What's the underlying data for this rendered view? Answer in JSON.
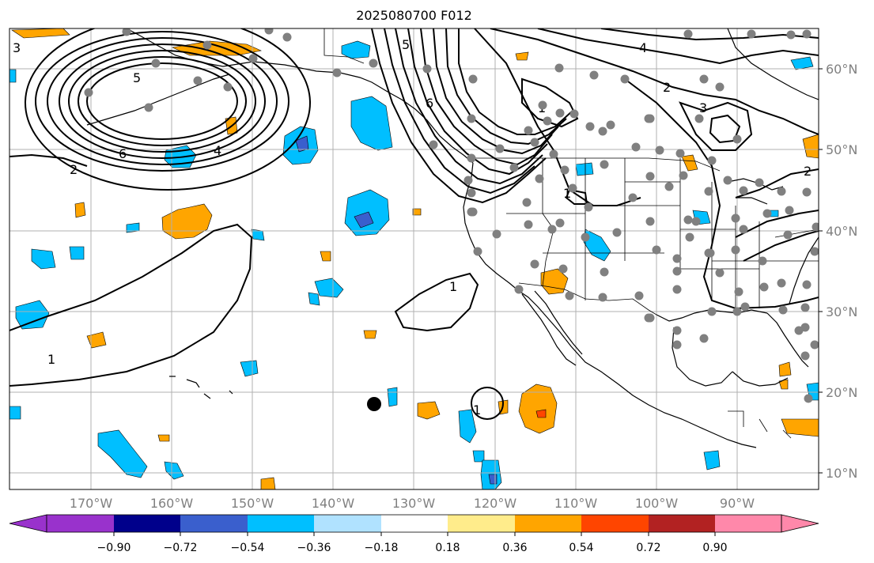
{
  "title": "2025080700 F012",
  "map": {
    "longitude_ticks": [
      "170°W",
      "160°W",
      "150°W",
      "140°W",
      "130°W",
      "120°W",
      "110°W",
      "100°W",
      "90°W"
    ],
    "latitude_ticks": [
      "60°N",
      "50°N",
      "40°N",
      "30°N",
      "20°N",
      "10°N"
    ],
    "contour_labels": [
      "3",
      "5",
      "6",
      "4",
      "1",
      "2",
      "5",
      "6",
      "4",
      "1",
      "2",
      "3",
      "1",
      "1",
      "1",
      "2"
    ],
    "grid": true,
    "coastlines": true,
    "state_borders": true,
    "station_marker_color": "#808080",
    "highlight_marker_color": "#000000",
    "contour_color": "#000000"
  },
  "colorbar": {
    "tick_labels": [
      "−0.90",
      "−0.72",
      "−0.54",
      "−0.36",
      "−0.18",
      "0.18",
      "0.36",
      "0.54",
      "0.72",
      "0.90"
    ],
    "under_color": "#9932cc",
    "over_color": "#ff88aa",
    "colors": [
      "#9932cc",
      "#00008b",
      "#3a5fcd",
      "#00bfff",
      "#b0e2ff",
      "#ffffff",
      "#ffec8b",
      "#ffa500",
      "#ff4500",
      "#b22222",
      "#ff88aa"
    ]
  }
}
